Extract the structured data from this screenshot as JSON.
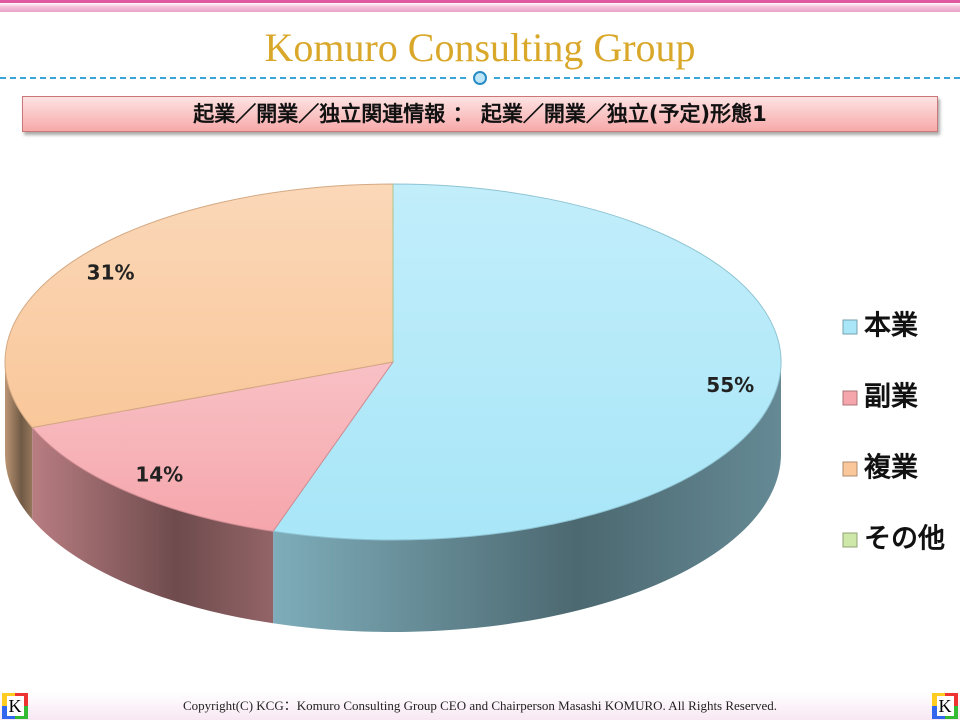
{
  "header": {
    "title": "Komuro Consulting Group",
    "subtitle": "起業／開業／独立関連情報 ： 起業／開業／独立(予定)形態1"
  },
  "chart_data": {
    "type": "pie",
    "categories": [
      "本業",
      "副業",
      "複業",
      "その他"
    ],
    "values": [
      55,
      14,
      31,
      0
    ],
    "value_labels": [
      "55%",
      "14%",
      "31%",
      null
    ],
    "colors": [
      "#a8e6f8",
      "#f5a6ac",
      "#f9c79a",
      "#cde8a8"
    ],
    "legend": "right"
  },
  "footer": {
    "copyright": "Copyright(C)  KCG：Komuro Consulting Group CEO and Chairperson Masashi KOMURO. All Rights Reserved.",
    "logo": "K"
  }
}
